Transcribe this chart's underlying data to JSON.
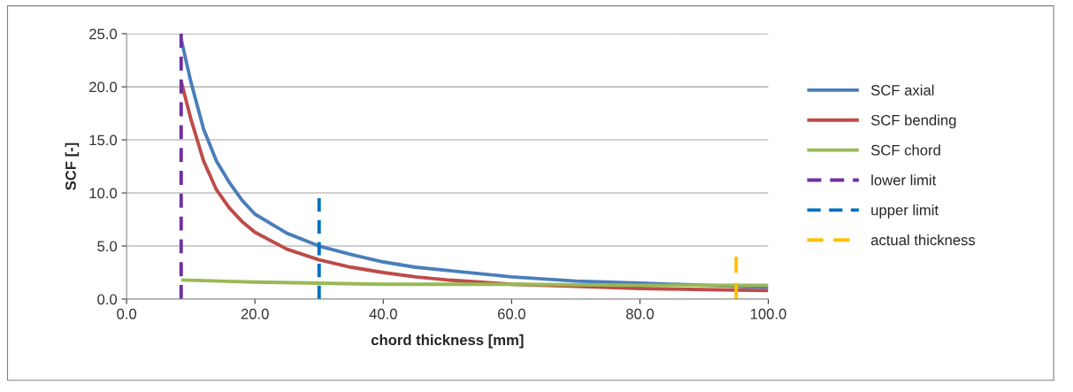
{
  "chart_data": {
    "type": "line",
    "xlabel": "chord thickness [mm]",
    "ylabel": "SCF [-]",
    "xlim": [
      0,
      100
    ],
    "ylim": [
      0,
      25
    ],
    "xticks": [
      {
        "value": 0,
        "label": "0.0"
      },
      {
        "value": 20,
        "label": "20.0"
      },
      {
        "value": 40,
        "label": "40.0"
      },
      {
        "value": 60,
        "label": "60.0"
      },
      {
        "value": 80,
        "label": "80.0"
      },
      {
        "value": 100,
        "label": "100.0"
      }
    ],
    "yticks": [
      {
        "value": 0,
        "label": "0.0"
      },
      {
        "value": 5,
        "label": "5.0"
      },
      {
        "value": 10,
        "label": "10.0"
      },
      {
        "value": 15,
        "label": "15.0"
      },
      {
        "value": 20,
        "label": "20.0"
      },
      {
        "value": 25,
        "label": "25.0"
      }
    ],
    "grid": "y",
    "legend": "right",
    "marker": "none",
    "series": [
      {
        "name": "SCF axial",
        "color": "#4a7ebb",
        "line_style": "solid",
        "x": [
          8.5,
          10,
          12,
          14,
          16,
          18,
          20,
          25,
          30,
          35,
          40,
          45,
          50,
          60,
          70,
          80,
          90,
          100
        ],
        "values": [
          24.5,
          20.5,
          16,
          13,
          11,
          9.3,
          8,
          6.2,
          5,
          4.2,
          3.5,
          3,
          2.7,
          2.1,
          1.7,
          1.5,
          1.3,
          1.1
        ]
      },
      {
        "name": "SCF bending",
        "color": "#be4b48",
        "line_style": "solid",
        "x": [
          8.5,
          10,
          12,
          14,
          16,
          18,
          20,
          25,
          30,
          35,
          40,
          45,
          50,
          60,
          70,
          80,
          90,
          100
        ],
        "values": [
          20.5,
          17,
          13,
          10.3,
          8.6,
          7.3,
          6.3,
          4.7,
          3.7,
          3,
          2.5,
          2.1,
          1.8,
          1.4,
          1.2,
          1,
          0.9,
          0.8
        ]
      },
      {
        "name": "SCF chord",
        "color": "#98b954",
        "line_style": "solid",
        "x": [
          8.5,
          20,
          30,
          40,
          60,
          80,
          100
        ],
        "values": [
          1.8,
          1.6,
          1.5,
          1.4,
          1.4,
          1.3,
          1.3
        ]
      },
      {
        "name": "lower limit",
        "color": "#7030a0",
        "line_style": "dashed",
        "x": [
          8.5,
          8.5
        ],
        "values": [
          0,
          25
        ]
      },
      {
        "name": "upper limit",
        "color": "#0070c0",
        "line_style": "dashed",
        "x": [
          30,
          30
        ],
        "values": [
          0,
          9.5
        ]
      },
      {
        "name": "actual thickness",
        "color": "#ffc000",
        "line_style": "dashed",
        "x": [
          95,
          95
        ],
        "values": [
          0,
          4
        ]
      }
    ]
  }
}
